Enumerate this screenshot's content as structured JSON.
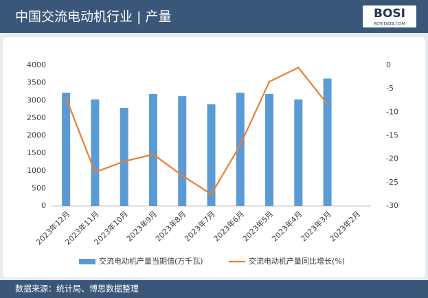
{
  "header": {
    "title": "中国交流电动机行业 | 产量",
    "logo": "BOSI",
    "logo_sub": "BOSIDATA.COM"
  },
  "footer": {
    "source": "数据来源：统计局、博思数据整理"
  },
  "chart_data": {
    "type": "bar-line",
    "categories": [
      "2023年12月",
      "2023年11月",
      "2023年10月",
      "2023年9月",
      "2023年8月",
      "2023年7月",
      "2023年6月",
      "2023年5月",
      "2023年4月",
      "2023年3月",
      "2023年2月"
    ],
    "series": [
      {
        "name": "交流电动机产量当期值(万千瓦)",
        "type": "bar",
        "color": "#5b9bd5",
        "values": [
          3220,
          3030,
          2790,
          3180,
          3120,
          2890,
          3220,
          3180,
          3030,
          3620,
          null
        ]
      },
      {
        "name": "交流电动机产量同比增长(%)",
        "type": "line",
        "axis": "y2",
        "color": "#ed7d31",
        "values": [
          -7,
          -22.8,
          -20.5,
          -19,
          -23.5,
          -27.5,
          -17,
          -3.5,
          -0.5,
          -8.3,
          null
        ]
      }
    ],
    "ylim": [
      0,
      4000
    ],
    "yticks": [
      0,
      500,
      1000,
      1500,
      2000,
      2500,
      3000,
      3500,
      4000
    ],
    "y2lim": [
      -30,
      0
    ],
    "y2ticks": [
      -30,
      -25,
      -20,
      -15,
      -10,
      -5,
      0
    ]
  }
}
